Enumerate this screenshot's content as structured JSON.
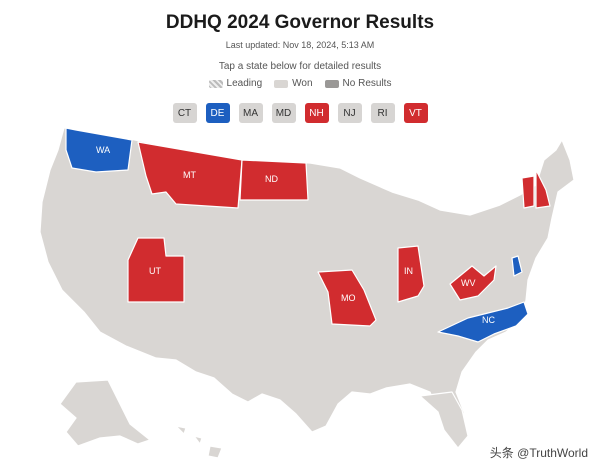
{
  "header": {
    "title": "DDHQ 2024 Governor Results",
    "updated": "Last updated: Nov 18, 2024, 5:13 AM",
    "instruction": "Tap a state below for detailed results"
  },
  "legend": {
    "leading": "Leading",
    "won": "Won",
    "no_results": "No Results"
  },
  "colors": {
    "democrat": "#1d5fc0",
    "republican": "#d12c2f",
    "no_race": "#d9d6d3",
    "border": "#ffffff"
  },
  "state_buttons": [
    {
      "label": "CT",
      "party": "none"
    },
    {
      "label": "DE",
      "party": "dem"
    },
    {
      "label": "MA",
      "party": "none"
    },
    {
      "label": "MD",
      "party": "none"
    },
    {
      "label": "NH",
      "party": "rep"
    },
    {
      "label": "NJ",
      "party": "none"
    },
    {
      "label": "RI",
      "party": "none"
    },
    {
      "label": "VT",
      "party": "rep"
    }
  ],
  "map_labels": {
    "wa": "WA",
    "mt": "MT",
    "nd": "ND",
    "ut": "UT",
    "mo": "MO",
    "in": "IN",
    "wv": "WV",
    "nc": "NC"
  },
  "watermark": "头条 @TruthWorld"
}
